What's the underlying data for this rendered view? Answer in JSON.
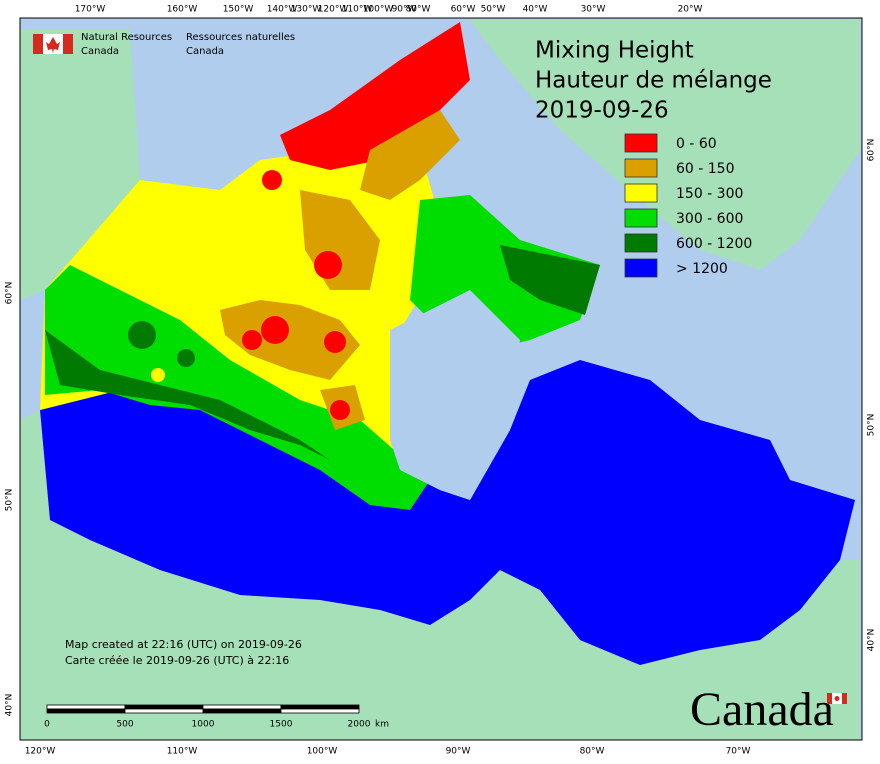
{
  "header": {
    "agency_en": [
      "Natural Resources",
      "Canada"
    ],
    "agency_fr": [
      "Ressources naturelles",
      "Canada"
    ]
  },
  "title": [
    "Mixing Height",
    "Hauteur de mélange",
    "2019-09-26"
  ],
  "legend": [
    {
      "label": "0 - 60",
      "color": "#ff0000"
    },
    {
      "label": "60 - 150",
      "color": "#daa000"
    },
    {
      "label": "150 - 300",
      "color": "#ffff00"
    },
    {
      "label": "300 - 600",
      "color": "#00dd00"
    },
    {
      "label": "600 - 1200",
      "color": "#007a00"
    },
    {
      "label": "> 1200",
      "color": "#0000ff"
    }
  ],
  "graticule": {
    "top": [
      "170°W",
      "160°W",
      "150°W",
      "140°W",
      "130°W",
      "120°W",
      "110°W",
      "100°W",
      "90°W",
      "80°W",
      "60°W",
      "50°W",
      "40°W",
      "30°W",
      "20°W"
    ],
    "bottom": [
      "120°W",
      "110°W",
      "100°W",
      "90°W",
      "80°W",
      "70°W"
    ],
    "left": [
      "60°N",
      "50°N",
      "40°N"
    ],
    "right": [
      "60°N",
      "50°N",
      "40°N"
    ]
  },
  "notes": [
    "Map created at 22:16 (UTC) on 2019-09-26",
    "Carte créée le 2019-09-26 (UTC) à 22:16"
  ],
  "scale": {
    "ticks": [
      0,
      500,
      1000,
      1500,
      2000
    ],
    "unit": "km"
  },
  "wordmark": "Canada"
}
